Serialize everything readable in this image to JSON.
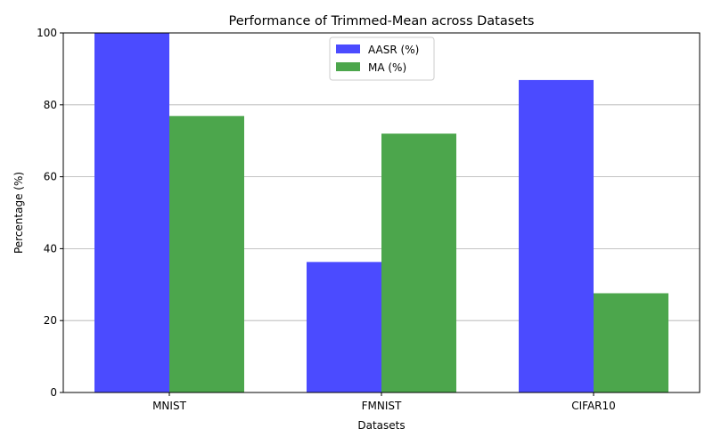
{
  "chart_data": {
    "type": "bar",
    "title": "Performance of Trimmed-Mean across Datasets",
    "xlabel": "Datasets",
    "ylabel": "Percentage (%)",
    "categories": [
      "MNIST",
      "FMNIST",
      "CIFAR10"
    ],
    "series": [
      {
        "name": "AASR (%)",
        "values": [
          100,
          36.3,
          86.9
        ],
        "color": "#4b4bff"
      },
      {
        "name": "MA (%)",
        "values": [
          76.9,
          72.0,
          27.6
        ],
        "color": "#4ca64c"
      }
    ],
    "ylim": [
      0,
      100
    ],
    "yticks": [
      0,
      20,
      40,
      60,
      80,
      100
    ],
    "grid": "horizontal",
    "legend_position": "top-center"
  }
}
